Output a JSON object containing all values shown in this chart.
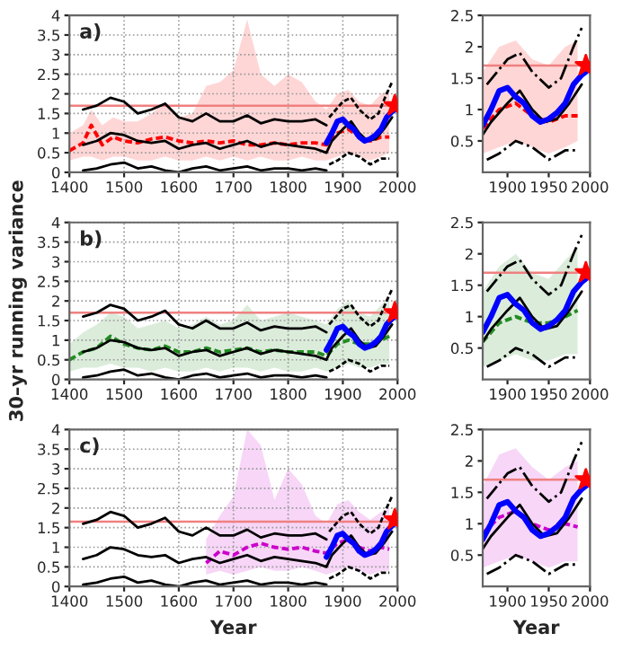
{
  "chart_data": [
    {
      "type": "line",
      "annotations": [
        "a)"
      ],
      "xlim": [
        1400,
        2000
      ],
      "ylim": [
        0,
        4
      ],
      "xticks": [
        1400,
        1500,
        1600,
        1700,
        1800,
        1900,
        2000
      ],
      "yticks": [
        0,
        0.5,
        1,
        1.5,
        2,
        2.5,
        3,
        3.5,
        4
      ],
      "grid": true,
      "ref_lines": [
        {
          "axis": "y",
          "value": 1.7,
          "color": "#f08080"
        }
      ],
      "series": [
        {
          "color": "#ff0000",
          "line_style": "dashed",
          "x": [
            1400,
            1425,
            1440,
            1460,
            1480,
            1500,
            1525,
            1550,
            1575,
            1600,
            1625,
            1650,
            1675,
            1700,
            1725,
            1750,
            1775,
            1800,
            1825,
            1850,
            1870,
            1890,
            1910,
            1930,
            1950,
            1970,
            1985
          ],
          "values": [
            0.55,
            0.75,
            1.2,
            0.7,
            0.9,
            0.8,
            0.75,
            0.85,
            0.9,
            0.8,
            0.75,
            0.8,
            0.75,
            0.8,
            0.7,
            0.7,
            0.75,
            0.7,
            0.75,
            0.75,
            0.7,
            1.0,
            1.1,
            0.9,
            0.8,
            0.9,
            0.9
          ],
          "lower": [
            0.3,
            0.4,
            0.4,
            0.3,
            0.4,
            0.4,
            0.3,
            0.3,
            0.4,
            0.3,
            0.3,
            0.4,
            0.3,
            0.4,
            0.3,
            0.4,
            0.3,
            0.3,
            0.4,
            0.3,
            0.3,
            0.4,
            0.5,
            0.4,
            0.3,
            0.4,
            0.5
          ],
          "upper": [
            1.0,
            1.2,
            1.6,
            1.2,
            1.4,
            1.3,
            1.3,
            1.5,
            1.8,
            1.4,
            1.5,
            2.2,
            2.3,
            2.6,
            3.9,
            2.5,
            2.2,
            2.5,
            2.3,
            1.8,
            1.6,
            2.0,
            2.1,
            1.8,
            1.7,
            2.0,
            2.1
          ]
        },
        {
          "color": "#000000",
          "line_style": "solid",
          "x": [
            1425,
            1450,
            1475,
            1500,
            1525,
            1550,
            1575,
            1600,
            1625,
            1650,
            1675,
            1700,
            1725,
            1750,
            1775,
            1800,
            1825,
            1850,
            1870
          ],
          "values": [
            1.6,
            1.7,
            1.9,
            1.8,
            1.5,
            1.6,
            1.75,
            1.4,
            1.3,
            1.5,
            1.3,
            1.3,
            1.45,
            1.25,
            1.35,
            1.3,
            1.3,
            1.35,
            1.2
          ]
        },
        {
          "color": "#000000",
          "line_style": "solid",
          "x": [
            1425,
            1450,
            1475,
            1500,
            1525,
            1550,
            1575,
            1600,
            1625,
            1650,
            1675,
            1700,
            1725,
            1750,
            1775,
            1800,
            1825,
            1850,
            1870
          ],
          "values": [
            0.05,
            0.1,
            0.2,
            0.25,
            0.1,
            0.15,
            0.05,
            0.0,
            0.1,
            0.15,
            0.05,
            0.1,
            0.15,
            0.05,
            0.1,
            0.1,
            0.05,
            0.1,
            0.05
          ]
        },
        {
          "color": "#000000",
          "line_style": "solid",
          "x": [
            1425,
            1450,
            1475,
            1500,
            1525,
            1550,
            1575,
            1600,
            1625,
            1650,
            1675,
            1700,
            1725,
            1750,
            1775,
            1800,
            1825,
            1850,
            1870,
            1880,
            1900,
            1915,
            1930,
            1945,
            1960,
            1975,
            1990
          ],
          "values": [
            0.7,
            0.8,
            1.0,
            0.95,
            0.8,
            0.75,
            0.8,
            0.6,
            0.7,
            0.75,
            0.6,
            0.7,
            0.8,
            0.65,
            0.75,
            0.7,
            0.65,
            0.6,
            0.5,
            0.8,
            1.1,
            1.3,
            1.0,
            0.8,
            0.85,
            1.1,
            1.4
          ]
        },
        {
          "color": "#000000",
          "line_style": "dashed",
          "x": [
            1875,
            1900,
            1915,
            1930,
            1950,
            1965,
            1980,
            1990
          ],
          "values": [
            1.4,
            1.8,
            1.9,
            1.6,
            1.35,
            1.5,
            2.0,
            2.3
          ]
        },
        {
          "color": "#000000",
          "line_style": "dashed",
          "x": [
            1875,
            1890,
            1910,
            1930,
            1950,
            1970,
            1985
          ],
          "values": [
            0.2,
            0.3,
            0.5,
            0.4,
            0.2,
            0.35,
            0.35
          ]
        },
        {
          "color": "#0000ff",
          "line_style": "solid",
          "x": [
            1870,
            1880,
            1890,
            1900,
            1910,
            1920,
            1930,
            1940,
            1950,
            1960,
            1970,
            1980,
            1990,
            1995
          ],
          "values": [
            0.75,
            1.0,
            1.3,
            1.35,
            1.2,
            1.1,
            0.9,
            0.8,
            0.85,
            0.95,
            1.1,
            1.4,
            1.55,
            1.6
          ]
        },
        {
          "type": "scatter",
          "marker": "star",
          "color": "#ff0000",
          "x": [
            1995
          ],
          "values": [
            1.7
          ]
        }
      ]
    },
    {
      "type": "line",
      "xlim": [
        1870,
        2000
      ],
      "ylim": [
        0,
        2.5
      ],
      "xticks": [
        1900,
        1950,
        2000
      ],
      "yticks": [
        0.5,
        1,
        1.5,
        2,
        2.5
      ],
      "ref_lines": [
        {
          "axis": "y",
          "value": 1.7,
          "color": "#f08080"
        }
      ],
      "series": [
        {
          "color": "#ff0000",
          "line_style": "dashed",
          "x": [
            1870,
            1890,
            1910,
            1930,
            1950,
            1970,
            1985
          ],
          "values": [
            0.7,
            1.0,
            1.1,
            0.9,
            0.8,
            0.9,
            0.9
          ],
          "lower": [
            0.3,
            0.4,
            0.5,
            0.4,
            0.3,
            0.4,
            0.5
          ],
          "upper": [
            1.6,
            2.0,
            2.1,
            1.8,
            1.7,
            2.0,
            2.1
          ]
        },
        {
          "color": "#000000",
          "line_style": "solid",
          "x": [
            1870,
            1880,
            1900,
            1915,
            1930,
            1945,
            1960,
            1975,
            1990
          ],
          "values": [
            0.6,
            0.8,
            1.1,
            1.3,
            1.0,
            0.8,
            0.85,
            1.1,
            1.4
          ]
        },
        {
          "color": "#000000",
          "line_style": "dashdot",
          "x": [
            1875,
            1900,
            1915,
            1930,
            1950,
            1965,
            1980,
            1990
          ],
          "values": [
            1.4,
            1.8,
            1.9,
            1.6,
            1.35,
            1.5,
            2.0,
            2.3
          ]
        },
        {
          "color": "#000000",
          "line_style": "dashdot",
          "x": [
            1875,
            1890,
            1910,
            1930,
            1950,
            1970,
            1985
          ],
          "values": [
            0.2,
            0.3,
            0.5,
            0.4,
            0.2,
            0.35,
            0.35
          ]
        },
        {
          "color": "#0000ff",
          "line_style": "solid",
          "x": [
            1870,
            1880,
            1890,
            1900,
            1910,
            1920,
            1930,
            1940,
            1950,
            1960,
            1970,
            1980,
            1990,
            1995
          ],
          "values": [
            0.75,
            1.0,
            1.3,
            1.35,
            1.2,
            1.1,
            0.9,
            0.8,
            0.85,
            0.95,
            1.1,
            1.4,
            1.55,
            1.6
          ]
        },
        {
          "type": "scatter",
          "marker": "star",
          "color": "#ff0000",
          "x": [
            1995
          ],
          "values": [
            1.7
          ]
        }
      ]
    },
    {
      "type": "line",
      "annotations": [
        "b)"
      ],
      "ylabel": "30–yr running variance",
      "xlim": [
        1400,
        2000
      ],
      "ylim": [
        0,
        4
      ],
      "xticks": [
        1400,
        1500,
        1600,
        1700,
        1800,
        1900,
        2000
      ],
      "yticks": [
        0,
        0.5,
        1,
        1.5,
        2,
        2.5,
        3,
        3.5,
        4
      ],
      "grid": true,
      "ref_lines": [
        {
          "axis": "y",
          "value": 1.7,
          "color": "#f08080"
        }
      ],
      "series": [
        {
          "color": "#228b22",
          "line_style": "dashed",
          "x": [
            1400,
            1425,
            1450,
            1475,
            1500,
            1525,
            1550,
            1575,
            1600,
            1625,
            1650,
            1675,
            1700,
            1725,
            1750,
            1775,
            1800,
            1825,
            1850,
            1870,
            1890,
            1910,
            1930,
            1950,
            1970,
            1985
          ],
          "values": [
            0.5,
            0.7,
            0.8,
            1.1,
            0.9,
            0.8,
            0.75,
            0.85,
            0.7,
            0.7,
            0.8,
            0.7,
            0.75,
            0.8,
            0.7,
            0.75,
            0.7,
            0.7,
            0.7,
            0.6,
            0.9,
            1.0,
            0.9,
            0.9,
            1.0,
            1.1
          ],
          "lower": [
            0.2,
            0.3,
            0.3,
            0.4,
            0.3,
            0.3,
            0.2,
            0.3,
            0.2,
            0.2,
            0.3,
            0.2,
            0.3,
            0.3,
            0.2,
            0.3,
            0.2,
            0.2,
            0.3,
            0.2,
            0.3,
            0.4,
            0.3,
            0.3,
            0.4,
            0.4
          ],
          "upper": [
            0.9,
            1.2,
            1.4,
            1.7,
            1.6,
            1.3,
            1.4,
            1.5,
            1.3,
            1.4,
            1.6,
            1.4,
            1.5,
            1.9,
            1.5,
            1.6,
            1.7,
            1.6,
            1.5,
            1.4,
            1.8,
            2.0,
            1.7,
            1.6,
            1.9,
            2.1
          ]
        },
        {
          "color": "#000000",
          "line_style": "solid",
          "x": [
            1425,
            1450,
            1475,
            1500,
            1525,
            1550,
            1575,
            1600,
            1625,
            1650,
            1675,
            1700,
            1725,
            1750,
            1775,
            1800,
            1825,
            1850,
            1870
          ],
          "values": [
            1.6,
            1.7,
            1.9,
            1.8,
            1.5,
            1.6,
            1.75,
            1.4,
            1.3,
            1.5,
            1.3,
            1.3,
            1.45,
            1.25,
            1.35,
            1.3,
            1.3,
            1.35,
            1.2
          ]
        },
        {
          "color": "#000000",
          "line_style": "solid",
          "x": [
            1425,
            1450,
            1475,
            1500,
            1525,
            1550,
            1575,
            1600,
            1625,
            1650,
            1675,
            1700,
            1725,
            1750,
            1775,
            1800,
            1825,
            1850,
            1870
          ],
          "values": [
            0.05,
            0.1,
            0.2,
            0.25,
            0.1,
            0.15,
            0.05,
            0.0,
            0.1,
            0.15,
            0.05,
            0.1,
            0.15,
            0.05,
            0.1,
            0.1,
            0.05,
            0.1,
            0.05
          ]
        },
        {
          "color": "#000000",
          "line_style": "solid",
          "x": [
            1425,
            1450,
            1475,
            1500,
            1525,
            1550,
            1575,
            1600,
            1625,
            1650,
            1675,
            1700,
            1725,
            1750,
            1775,
            1800,
            1825,
            1850,
            1870,
            1880,
            1900,
            1915,
            1930,
            1945,
            1960,
            1975,
            1990
          ],
          "values": [
            0.7,
            0.8,
            1.0,
            0.95,
            0.8,
            0.75,
            0.8,
            0.6,
            0.7,
            0.75,
            0.6,
            0.7,
            0.8,
            0.65,
            0.75,
            0.7,
            0.65,
            0.6,
            0.5,
            0.8,
            1.1,
            1.3,
            1.0,
            0.8,
            0.85,
            1.1,
            1.4
          ]
        },
        {
          "color": "#000000",
          "line_style": "dashed",
          "x": [
            1875,
            1900,
            1915,
            1930,
            1950,
            1965,
            1980,
            1990
          ],
          "values": [
            1.4,
            1.8,
            1.9,
            1.6,
            1.35,
            1.5,
            2.0,
            2.3
          ]
        },
        {
          "color": "#000000",
          "line_style": "dashed",
          "x": [
            1875,
            1890,
            1910,
            1930,
            1950,
            1970,
            1985
          ],
          "values": [
            0.2,
            0.3,
            0.5,
            0.4,
            0.2,
            0.35,
            0.35
          ]
        },
        {
          "color": "#0000ff",
          "line_style": "solid",
          "x": [
            1870,
            1880,
            1890,
            1900,
            1910,
            1920,
            1930,
            1940,
            1950,
            1960,
            1970,
            1980,
            1990,
            1995
          ],
          "values": [
            0.75,
            1.0,
            1.3,
            1.35,
            1.2,
            1.1,
            0.9,
            0.8,
            0.85,
            0.95,
            1.1,
            1.4,
            1.55,
            1.6
          ]
        },
        {
          "type": "scatter",
          "marker": "star",
          "color": "#ff0000",
          "x": [
            1995
          ],
          "values": [
            1.7
          ]
        }
      ]
    },
    {
      "type": "line",
      "xlim": [
        1870,
        2000
      ],
      "ylim": [
        0,
        2.5
      ],
      "xticks": [
        1900,
        1950,
        2000
      ],
      "yticks": [
        0.5,
        1,
        1.5,
        2,
        2.5
      ],
      "ref_lines": [
        {
          "axis": "y",
          "value": 1.7,
          "color": "#f08080"
        }
      ],
      "series": [
        {
          "color": "#228b22",
          "line_style": "dashed",
          "x": [
            1870,
            1890,
            1910,
            1930,
            1950,
            1970,
            1985
          ],
          "values": [
            0.6,
            0.9,
            1.0,
            0.9,
            0.9,
            1.0,
            1.1
          ],
          "lower": [
            0.2,
            0.3,
            0.4,
            0.3,
            0.3,
            0.4,
            0.4
          ],
          "upper": [
            1.4,
            1.8,
            2.0,
            1.7,
            1.6,
            1.9,
            2.1
          ]
        },
        {
          "color": "#000000",
          "line_style": "solid",
          "x": [
            1870,
            1880,
            1900,
            1915,
            1930,
            1945,
            1960,
            1975,
            1990
          ],
          "values": [
            0.6,
            0.8,
            1.1,
            1.3,
            1.0,
            0.8,
            0.85,
            1.1,
            1.4
          ]
        },
        {
          "color": "#000000",
          "line_style": "dashdot",
          "x": [
            1875,
            1900,
            1915,
            1930,
            1950,
            1965,
            1980,
            1990
          ],
          "values": [
            1.4,
            1.8,
            1.9,
            1.6,
            1.35,
            1.5,
            2.0,
            2.3
          ]
        },
        {
          "color": "#000000",
          "line_style": "dashdot",
          "x": [
            1875,
            1890,
            1910,
            1930,
            1950,
            1970,
            1985
          ],
          "values": [
            0.2,
            0.3,
            0.5,
            0.4,
            0.2,
            0.35,
            0.35
          ]
        },
        {
          "color": "#0000ff",
          "line_style": "solid",
          "x": [
            1870,
            1880,
            1890,
            1900,
            1910,
            1920,
            1930,
            1940,
            1950,
            1960,
            1970,
            1980,
            1990,
            1995
          ],
          "values": [
            0.75,
            1.0,
            1.3,
            1.35,
            1.2,
            1.1,
            0.9,
            0.8,
            0.85,
            0.95,
            1.1,
            1.4,
            1.55,
            1.6
          ]
        },
        {
          "type": "scatter",
          "marker": "star",
          "color": "#ff0000",
          "x": [
            1995
          ],
          "values": [
            1.7
          ]
        }
      ]
    },
    {
      "type": "line",
      "annotations": [
        "c)"
      ],
      "xlabel": "Year",
      "xlim": [
        1400,
        2000
      ],
      "ylim": [
        0,
        4
      ],
      "xticks": [
        1400,
        1500,
        1600,
        1700,
        1800,
        1900,
        2000
      ],
      "yticks": [
        0,
        0.5,
        1,
        1.5,
        2,
        2.5,
        3,
        3.5,
        4
      ],
      "grid": true,
      "ref_lines": [
        {
          "axis": "y",
          "value": 1.65,
          "color": "#f08080"
        }
      ],
      "series": [
        {
          "color": "#cc00cc",
          "line_style": "dashed",
          "x": [
            1650,
            1675,
            1700,
            1725,
            1750,
            1775,
            1800,
            1825,
            1850,
            1870,
            1890,
            1910,
            1930,
            1950,
            1970,
            1985
          ],
          "values": [
            0.6,
            0.9,
            0.8,
            1.0,
            1.1,
            1.0,
            0.95,
            1.0,
            0.9,
            0.85,
            1.1,
            1.2,
            1.0,
            0.9,
            1.0,
            0.95
          ],
          "lower": [
            0.3,
            0.4,
            0.3,
            0.4,
            0.5,
            0.4,
            0.4,
            0.5,
            0.4,
            0.3,
            0.4,
            0.5,
            0.4,
            0.3,
            0.4,
            0.4
          ],
          "upper": [
            1.2,
            1.8,
            2.3,
            4.0,
            3.6,
            2.2,
            3.0,
            2.6,
            1.8,
            1.6,
            2.1,
            2.2,
            1.9,
            1.7,
            1.9,
            2.0
          ]
        },
        {
          "color": "#000000",
          "line_style": "solid",
          "x": [
            1425,
            1450,
            1475,
            1500,
            1525,
            1550,
            1575,
            1600,
            1625,
            1650,
            1675,
            1700,
            1725,
            1750,
            1775,
            1800,
            1825,
            1850,
            1870
          ],
          "values": [
            1.6,
            1.7,
            1.9,
            1.8,
            1.5,
            1.6,
            1.75,
            1.4,
            1.3,
            1.5,
            1.3,
            1.3,
            1.45,
            1.25,
            1.35,
            1.3,
            1.3,
            1.35,
            1.2
          ]
        },
        {
          "color": "#000000",
          "line_style": "solid",
          "x": [
            1425,
            1450,
            1475,
            1500,
            1525,
            1550,
            1575,
            1600,
            1625,
            1650,
            1675,
            1700,
            1725,
            1750,
            1775,
            1800,
            1825,
            1850,
            1870
          ],
          "values": [
            0.05,
            0.1,
            0.2,
            0.25,
            0.1,
            0.15,
            0.05,
            0.0,
            0.1,
            0.15,
            0.05,
            0.1,
            0.15,
            0.05,
            0.1,
            0.1,
            0.05,
            0.1,
            0.05
          ]
        },
        {
          "color": "#000000",
          "line_style": "solid",
          "x": [
            1425,
            1450,
            1475,
            1500,
            1525,
            1550,
            1575,
            1600,
            1625,
            1650,
            1675,
            1700,
            1725,
            1750,
            1775,
            1800,
            1825,
            1850,
            1870,
            1880,
            1900,
            1915,
            1930,
            1945,
            1960,
            1975,
            1990
          ],
          "values": [
            0.7,
            0.8,
            1.0,
            0.95,
            0.8,
            0.75,
            0.8,
            0.6,
            0.7,
            0.75,
            0.6,
            0.7,
            0.8,
            0.65,
            0.75,
            0.7,
            0.65,
            0.6,
            0.5,
            0.8,
            1.1,
            1.3,
            1.0,
            0.8,
            0.85,
            1.1,
            1.4
          ]
        },
        {
          "color": "#000000",
          "line_style": "dashed",
          "x": [
            1875,
            1900,
            1915,
            1930,
            1950,
            1965,
            1980,
            1990
          ],
          "values": [
            1.4,
            1.8,
            1.9,
            1.6,
            1.35,
            1.5,
            2.0,
            2.3
          ]
        },
        {
          "color": "#000000",
          "line_style": "dashed",
          "x": [
            1875,
            1890,
            1910,
            1930,
            1950,
            1970,
            1985
          ],
          "values": [
            0.2,
            0.3,
            0.5,
            0.4,
            0.2,
            0.35,
            0.35
          ]
        },
        {
          "color": "#0000ff",
          "line_style": "solid",
          "x": [
            1870,
            1880,
            1890,
            1900,
            1910,
            1920,
            1930,
            1940,
            1950,
            1960,
            1970,
            1980,
            1990,
            1995
          ],
          "values": [
            0.75,
            1.0,
            1.3,
            1.35,
            1.2,
            1.1,
            0.9,
            0.8,
            0.85,
            0.95,
            1.1,
            1.4,
            1.55,
            1.6
          ]
        },
        {
          "type": "scatter",
          "marker": "star",
          "color": "#ff0000",
          "x": [
            1995
          ],
          "values": [
            1.7
          ]
        }
      ]
    },
    {
      "type": "line",
      "xlabel": "Year",
      "xlim": [
        1870,
        2000
      ],
      "ylim": [
        0,
        2.5
      ],
      "xticks": [
        1900,
        1950,
        2000
      ],
      "yticks": [
        0.5,
        1,
        1.5,
        2,
        2.5
      ],
      "ref_lines": [
        {
          "axis": "y",
          "value": 1.7,
          "color": "#f08080"
        }
      ],
      "series": [
        {
          "color": "#cc00cc",
          "line_style": "dashed",
          "x": [
            1870,
            1890,
            1910,
            1930,
            1950,
            1970,
            1985
          ],
          "values": [
            0.85,
            1.1,
            1.2,
            1.0,
            0.9,
            1.0,
            0.95
          ],
          "lower": [
            0.3,
            0.4,
            0.5,
            0.4,
            0.3,
            0.4,
            0.4
          ],
          "upper": [
            1.6,
            2.1,
            2.2,
            1.9,
            1.7,
            1.9,
            2.0
          ]
        },
        {
          "color": "#000000",
          "line_style": "solid",
          "x": [
            1870,
            1880,
            1900,
            1915,
            1930,
            1945,
            1960,
            1975,
            1990
          ],
          "values": [
            0.6,
            0.8,
            1.1,
            1.3,
            1.0,
            0.8,
            0.85,
            1.1,
            1.4
          ]
        },
        {
          "color": "#000000",
          "line_style": "dashdot",
          "x": [
            1875,
            1900,
            1915,
            1930,
            1950,
            1965,
            1980,
            1990
          ],
          "values": [
            1.4,
            1.8,
            1.9,
            1.6,
            1.35,
            1.5,
            2.0,
            2.3
          ]
        },
        {
          "color": "#000000",
          "line_style": "dashdot",
          "x": [
            1875,
            1890,
            1910,
            1930,
            1950,
            1970,
            1985
          ],
          "values": [
            0.2,
            0.3,
            0.5,
            0.4,
            0.2,
            0.35,
            0.35
          ]
        },
        {
          "color": "#0000ff",
          "line_style": "solid",
          "x": [
            1870,
            1880,
            1890,
            1900,
            1910,
            1920,
            1930,
            1940,
            1950,
            1960,
            1970,
            1980,
            1990,
            1995
          ],
          "values": [
            0.75,
            1.0,
            1.3,
            1.35,
            1.2,
            1.1,
            0.9,
            0.8,
            0.85,
            0.95,
            1.1,
            1.4,
            1.55,
            1.6
          ]
        },
        {
          "type": "scatter",
          "marker": "star",
          "color": "#ff0000",
          "x": [
            1995
          ],
          "values": [
            1.7
          ]
        }
      ]
    }
  ]
}
